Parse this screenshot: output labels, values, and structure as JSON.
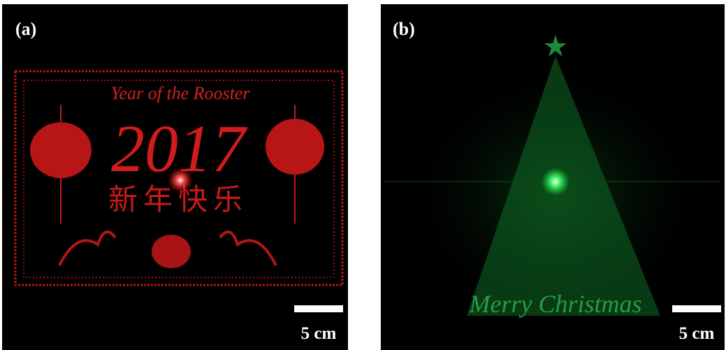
{
  "panels": [
    {
      "label": "(a)",
      "texts": [
        "Year of the Rooster",
        "2017",
        "新年快乐"
      ],
      "scale_bar": "5 cm"
    },
    {
      "label": "(b)",
      "texts": [
        "Merry Christmas"
      ],
      "scale_bar": "5 cm"
    }
  ]
}
